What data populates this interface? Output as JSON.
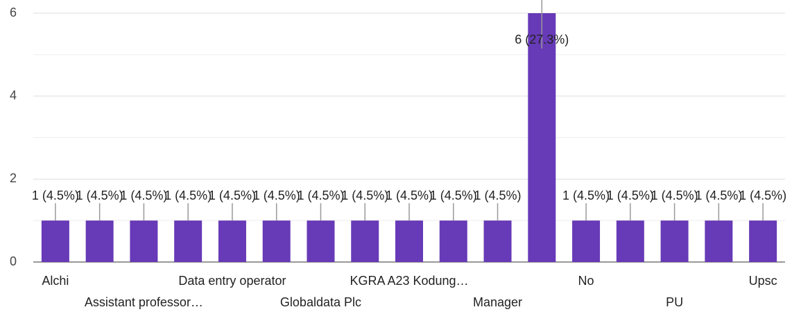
{
  "chart_data": {
    "type": "bar",
    "categories": [
      "Alchi",
      null,
      "Assistant professor…",
      null,
      "Data entry operator",
      null,
      "Globaldata Plc",
      null,
      "KGRA A23 Kodung…",
      null,
      "Manager",
      null,
      "No",
      null,
      "PU",
      null,
      "Upsc"
    ],
    "values": [
      1,
      1,
      1,
      1,
      1,
      1,
      1,
      1,
      1,
      1,
      1,
      6,
      1,
      1,
      1,
      1,
      1
    ],
    "value_labels": [
      "1 (4.5%)",
      "1 (4.5%)",
      "1 (4.5%)",
      "1 (4.5%)",
      "1 (4.5%)",
      "1 (4.5%)",
      "1 (4.5%)",
      "1 (4.5%)",
      "1 (4.5%)",
      "1 (4.5%)",
      "1 (4.5%)",
      "6 (27.3%)",
      "1 (4.5%)",
      "1 (4.5%)",
      "1 (4.5%)",
      "1 (4.5%)",
      "1 (4.5%)"
    ],
    "color": "#673ab7",
    "ylim": [
      0,
      6
    ],
    "yticks": [
      0,
      2,
      4,
      6
    ],
    "minor_yticks": [
      1,
      3,
      5
    ],
    "grid": true
  }
}
